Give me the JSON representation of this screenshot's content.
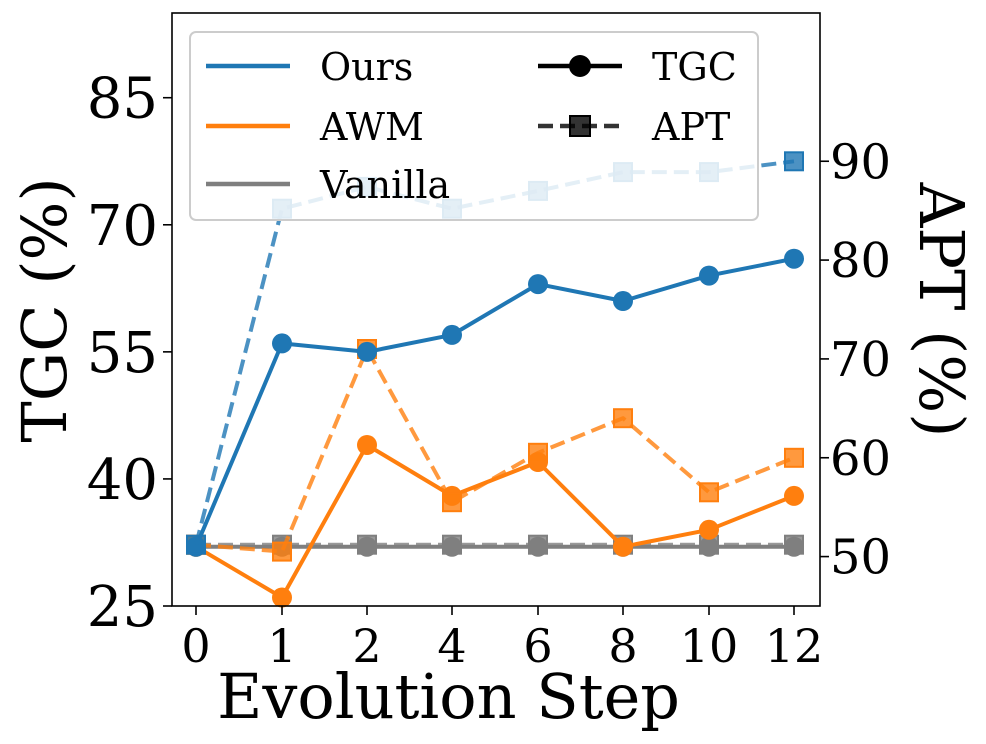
{
  "chart_data": {
    "type": "line",
    "title": "",
    "xlabel": "Evolution Step",
    "ylabel_left": "TGC (%)",
    "ylabel_right": "APT (%)",
    "categories": [
      "0",
      "1",
      "2",
      "4",
      "6",
      "8",
      "10",
      "12"
    ],
    "ylim_left": [
      25,
      95
    ],
    "yticks_left": [
      25,
      40,
      55,
      70,
      85
    ],
    "ylim_right": [
      45,
      105
    ],
    "yticks_right": [
      50,
      60,
      70,
      80,
      90
    ],
    "grid": false,
    "legend_position": "top-left",
    "series": [
      {
        "name": "Ours",
        "metric": "TGC",
        "axis": "left",
        "style": "solid",
        "marker": "circle",
        "color": "#1f77b4",
        "values": [
          32,
          56,
          55,
          57,
          63,
          61,
          64,
          66
        ]
      },
      {
        "name": "AWM",
        "metric": "TGC",
        "axis": "left",
        "style": "solid",
        "marker": "circle",
        "color": "#ff7f0e",
        "values": [
          32,
          26,
          44,
          38,
          42,
          32,
          34,
          38
        ]
      },
      {
        "name": "Vanilla",
        "metric": "TGC",
        "axis": "left",
        "style": "solid",
        "marker": "circle",
        "color": "#7f7f7f",
        "values": [
          32,
          32,
          32,
          32,
          32,
          32,
          32,
          32
        ]
      },
      {
        "name": "Ours",
        "metric": "APT",
        "axis": "right",
        "style": "dashed",
        "marker": "square",
        "color": "#1f77b4",
        "values": [
          51.2,
          85.2,
          87.4,
          85.2,
          87.0,
          88.9,
          88.9,
          90.0
        ]
      },
      {
        "name": "AWM",
        "metric": "APT",
        "axis": "right",
        "style": "dashed",
        "marker": "square",
        "color": "#ff7f0e",
        "values": [
          51.2,
          50.5,
          71.0,
          55.5,
          60.5,
          64.0,
          56.5,
          60.0
        ]
      },
      {
        "name": "Vanilla",
        "metric": "APT",
        "axis": "right",
        "style": "dashed",
        "marker": "square",
        "color": "#7f7f7f",
        "values": [
          51.2,
          51.2,
          51.2,
          51.2,
          51.2,
          51.2,
          51.2,
          51.2
        ]
      }
    ],
    "legend": {
      "entries": [
        {
          "label": "Ours",
          "kind": "line",
          "color": "#1f77b4"
        },
        {
          "label": "AWM",
          "kind": "line",
          "color": "#ff7f0e"
        },
        {
          "label": "Vanilla",
          "kind": "line",
          "color": "#7f7f7f"
        },
        {
          "label": "TGC",
          "kind": "solid-circle",
          "color": "#000000"
        },
        {
          "label": "APT",
          "kind": "dashed-square",
          "color": "#000000"
        }
      ]
    }
  }
}
